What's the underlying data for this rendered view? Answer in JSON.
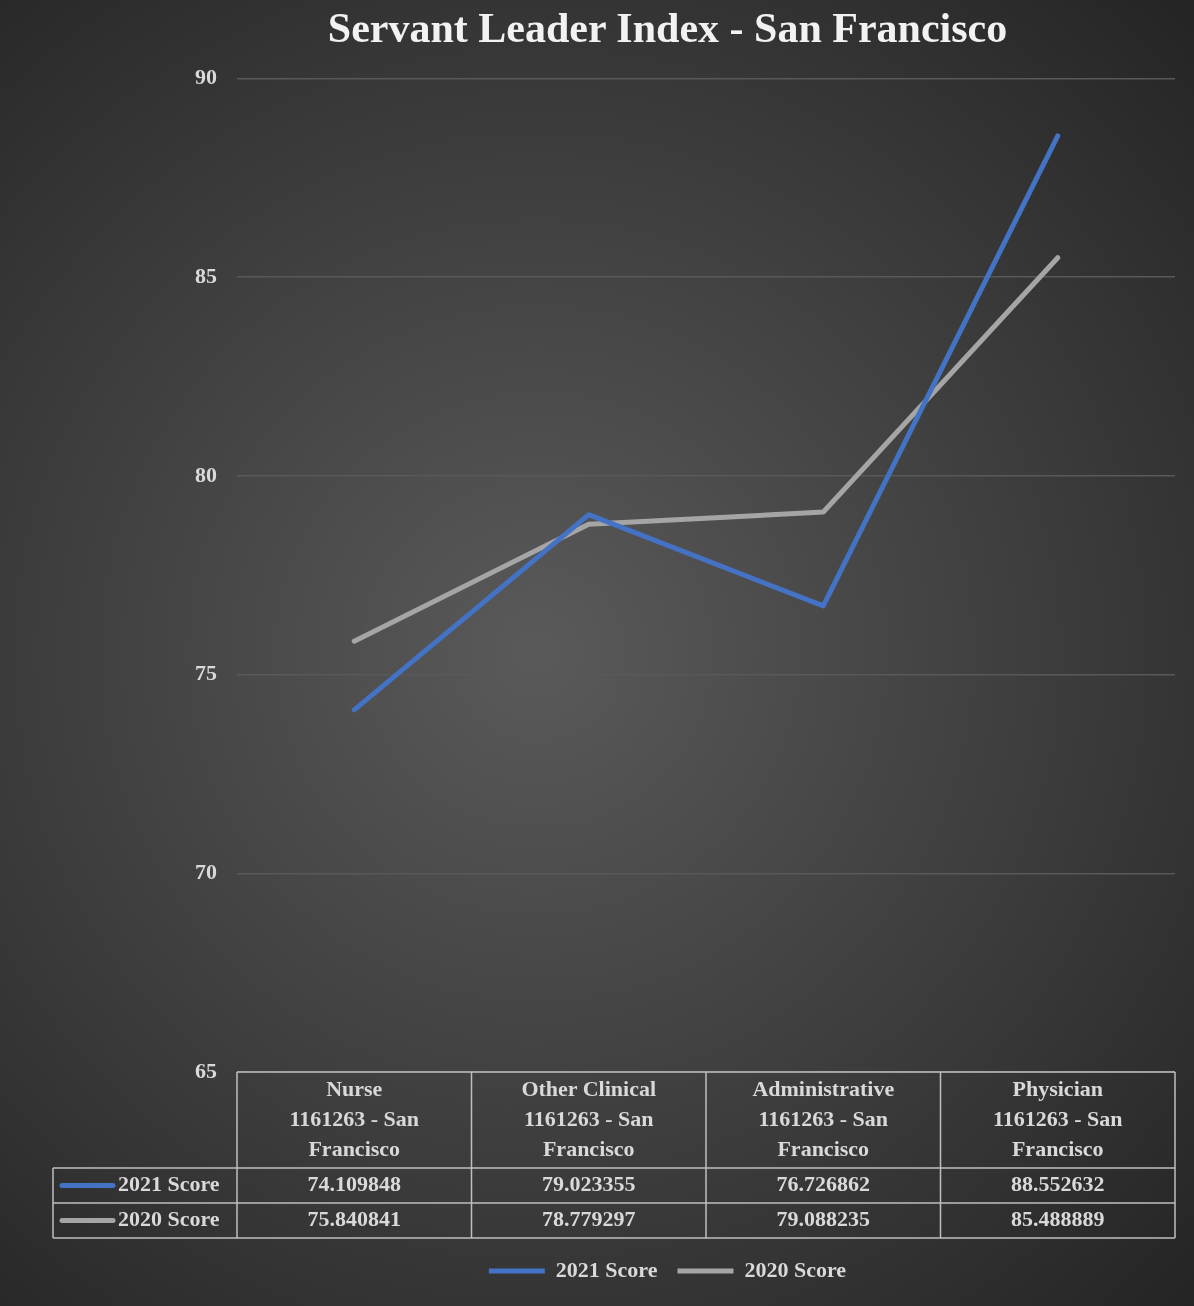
{
  "chart_data": {
    "type": "line",
    "title": "Servant Leader Index - San Francisco",
    "categories": [
      "Nurse\n1161263 - San Francisco",
      "Other Clinical\n1161263 - San Francisco",
      "Administrative\n1161263 - San Francisco",
      "Physician\n1161263 - San Francisco"
    ],
    "series": [
      {
        "name": "2021 Score",
        "color": "#4472c4",
        "values": [
          74.109848,
          79.023355,
          76.726862,
          88.552632
        ]
      },
      {
        "name": "2020 Score",
        "color": "#a5a5a5",
        "values": [
          75.840841,
          78.779297,
          79.088235,
          85.488889
        ]
      }
    ],
    "ylim": [
      65,
      90
    ],
    "yticks": [
      65,
      70,
      75,
      80,
      85,
      90
    ],
    "grid": "y",
    "legend": "bottom",
    "data_labels": true
  }
}
